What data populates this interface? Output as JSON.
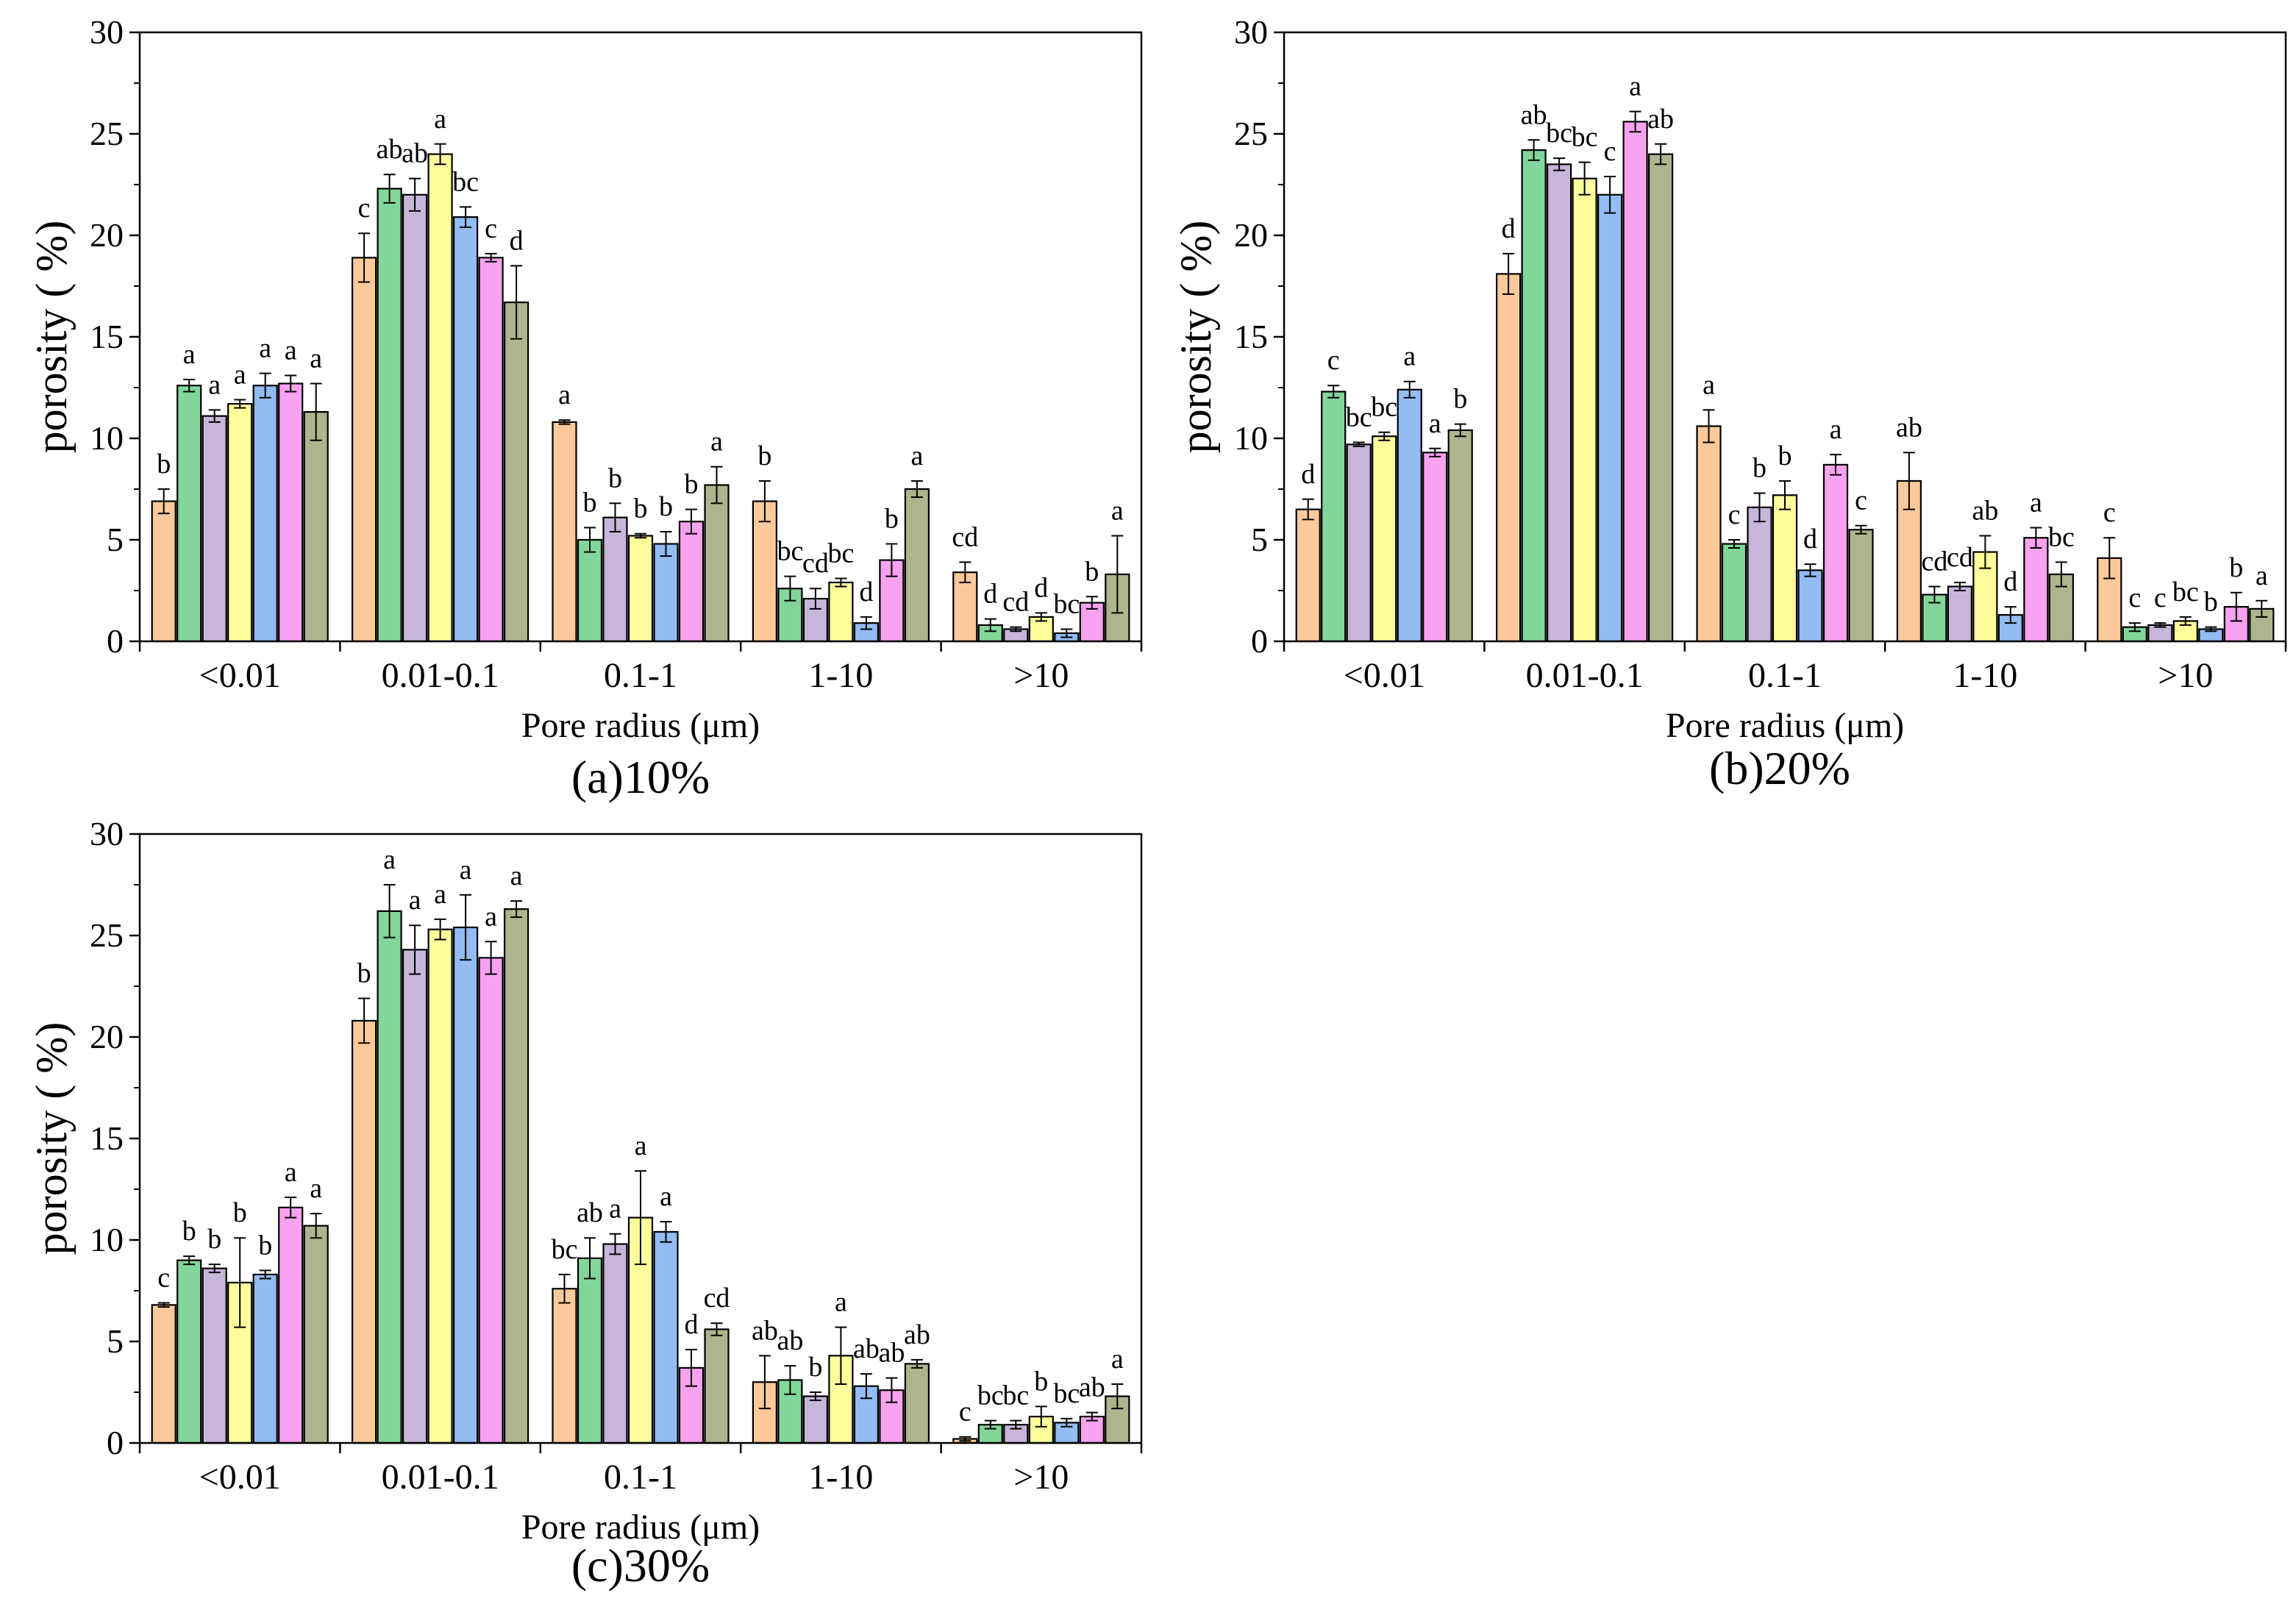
{
  "shared": {
    "categories": [
      "<0.01",
      "0.01-0.1",
      "0.1-1",
      "1-10",
      ">10"
    ],
    "series_colors": [
      "#FCC99A",
      "#83D69B",
      "#C7B6D9",
      "#FDFD9C",
      "#92BCF2",
      "#F8A2F0",
      "#ADB58C"
    ],
    "xlabel": "Pore radius (μm)",
    "ylabel": "porosity (  %)",
    "ylim": [
      0,
      30
    ],
    "yticks": [
      "0",
      "5",
      "10",
      "15",
      "20",
      "25",
      "30"
    ]
  },
  "chart_data": [
    {
      "type": "bar",
      "title": "(a)10%",
      "xlabel": "Pore radius (μm)",
      "ylabel": "porosity (  %)",
      "ylim": [
        0,
        30
      ],
      "categories": [
        "<0.01",
        "0.01-0.1",
        "0.1-1",
        "1-10",
        ">10"
      ],
      "values": [
        [
          6.9,
          12.6,
          11.1,
          11.7,
          12.6,
          12.7,
          11.3
        ],
        [
          18.9,
          22.3,
          22.0,
          24.0,
          20.9,
          18.9,
          16.7
        ],
        [
          10.8,
          5.0,
          6.1,
          5.2,
          4.8,
          5.9,
          7.7
        ],
        [
          6.9,
          2.6,
          2.1,
          2.9,
          0.9,
          4.0,
          7.5
        ],
        [
          3.4,
          0.8,
          0.6,
          1.2,
          0.4,
          1.9,
          3.3
        ]
      ],
      "errors": [
        [
          0.6,
          0.3,
          0.3,
          0.2,
          0.6,
          0.4,
          1.4
        ],
        [
          1.2,
          0.7,
          0.8,
          0.5,
          0.5,
          0.2,
          1.8
        ],
        [
          0.1,
          0.6,
          0.7,
          0.1,
          0.6,
          0.6,
          0.9
        ],
        [
          1.0,
          0.6,
          0.5,
          0.2,
          0.3,
          0.8,
          0.4
        ],
        [
          0.5,
          0.3,
          0.1,
          0.2,
          0.2,
          0.3,
          1.9
        ]
      ],
      "significance": [
        [
          "b",
          "a",
          "a",
          "a",
          "a",
          "a",
          "a"
        ],
        [
          "c",
          "ab",
          "ab",
          "a",
          "bc",
          "c",
          "d"
        ],
        [
          "a",
          "b",
          "b",
          "b",
          "b",
          "b",
          "a"
        ],
        [
          "b",
          "bc",
          "cd",
          "bc",
          "d",
          "b",
          "a"
        ],
        [
          "cd",
          "d",
          "cd",
          "d",
          "bc",
          "b",
          "a"
        ]
      ]
    },
    {
      "type": "bar",
      "title": "(b)20%",
      "xlabel": "Pore radius (μm)",
      "ylabel": "porosity (  %)",
      "ylim": [
        0,
        30
      ],
      "categories": [
        "<0.01",
        "0.01-0.1",
        "0.1-1",
        "1-10",
        ">10"
      ],
      "values": [
        [
          6.5,
          12.3,
          9.7,
          10.1,
          12.4,
          9.3,
          10.4
        ],
        [
          18.1,
          24.2,
          23.5,
          22.8,
          22.0,
          25.6,
          24.0
        ],
        [
          10.6,
          4.8,
          6.6,
          7.2,
          3.5,
          8.7,
          5.5
        ],
        [
          7.9,
          2.3,
          2.7,
          4.4,
          1.3,
          5.1,
          3.3
        ],
        [
          4.1,
          0.7,
          0.8,
          1.0,
          0.6,
          1.7,
          1.6
        ]
      ],
      "errors": [
        [
          0.5,
          0.3,
          0.1,
          0.2,
          0.4,
          0.2,
          0.3
        ],
        [
          1.0,
          0.5,
          0.3,
          0.8,
          0.9,
          0.5,
          0.5
        ],
        [
          0.8,
          0.2,
          0.7,
          0.7,
          0.3,
          0.5,
          0.2
        ],
        [
          1.4,
          0.4,
          0.2,
          0.8,
          0.4,
          0.5,
          0.6
        ],
        [
          1.0,
          0.2,
          0.1,
          0.2,
          0.1,
          0.7,
          0.4
        ]
      ],
      "significance": [
        [
          "d",
          "c",
          "bc",
          "bc",
          "a",
          "a",
          "b"
        ],
        [
          "d",
          "ab",
          "bc",
          "bc",
          "c",
          "a",
          "ab"
        ],
        [
          "a",
          "c",
          "b",
          "b",
          "d",
          "a",
          "c"
        ],
        [
          "ab",
          "cd",
          "cd",
          "ab",
          "d",
          "a",
          "bc"
        ],
        [
          "c",
          "c",
          "c",
          "bc",
          "b",
          "b",
          "a"
        ]
      ]
    },
    {
      "type": "bar",
      "title": "(c)30%",
      "xlabel": "Pore radius (μm)",
      "ylabel": "porosity (  %)",
      "ylim": [
        0,
        30
      ],
      "categories": [
        "<0.01",
        "0.01-0.1",
        "0.1-1",
        "1-10",
        ">10"
      ],
      "values": [
        [
          6.8,
          9.0,
          8.6,
          7.9,
          8.3,
          11.6,
          10.7
        ],
        [
          20.8,
          26.2,
          24.3,
          25.3,
          25.4,
          23.9,
          26.3
        ],
        [
          7.6,
          9.1,
          9.8,
          11.1,
          10.4,
          3.7,
          5.6
        ],
        [
          3.0,
          3.1,
          2.3,
          4.3,
          2.8,
          2.6,
          3.9
        ],
        [
          0.2,
          0.9,
          0.9,
          1.3,
          1.0,
          1.3,
          2.3
        ]
      ],
      "errors": [
        [
          0.1,
          0.2,
          0.2,
          2.2,
          0.2,
          0.5,
          0.6
        ],
        [
          1.1,
          1.3,
          1.2,
          0.5,
          1.6,
          0.8,
          0.4
        ],
        [
          0.7,
          1.0,
          0.5,
          2.3,
          0.5,
          0.9,
          0.3
        ],
        [
          1.3,
          0.7,
          0.2,
          1.4,
          0.6,
          0.6,
          0.2
        ],
        [
          0.1,
          0.2,
          0.2,
          0.5,
          0.2,
          0.2,
          0.6
        ]
      ],
      "significance": [
        [
          "c",
          "b",
          "b",
          "b",
          "b",
          "a",
          "a"
        ],
        [
          "b",
          "a",
          "a",
          "a",
          "a",
          "a",
          "a"
        ],
        [
          "bc",
          "ab",
          "a",
          "a",
          "a",
          "d",
          "cd"
        ],
        [
          "ab",
          "ab",
          "b",
          "a",
          "ab",
          "ab",
          "ab"
        ],
        [
          "c",
          "bc",
          "bc",
          "b",
          "bc",
          "ab",
          "a"
        ]
      ]
    }
  ]
}
